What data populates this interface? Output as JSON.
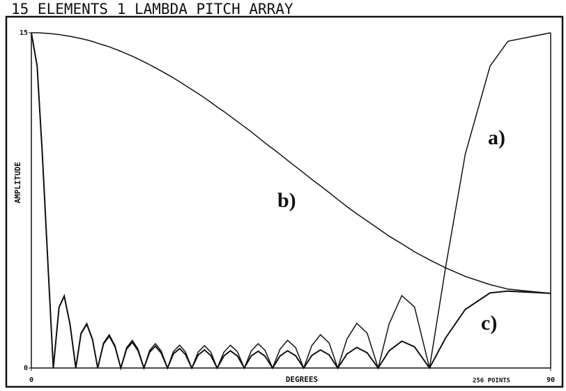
{
  "chart_data": {
    "type": "line",
    "title": "15 ELEMENTS 1 LAMBDA PITCH ARRAY",
    "xlabel": "DEGREES",
    "ylabel": "AMPLITUDE",
    "note": "256 POINTS",
    "xlim": [
      0,
      90
    ],
    "ylim": [
      0,
      15
    ],
    "xticks": [
      0,
      90
    ],
    "yticks": [
      0,
      15
    ],
    "x": [
      0,
      1.0,
      1.9,
      2.9,
      3.8,
      4.8,
      5.7,
      6.7,
      7.7,
      8.6,
      9.6,
      10.6,
      11.5,
      12.5,
      13.5,
      14.5,
      15.5,
      16.5,
      17.5,
      18.5,
      19.5,
      20.5,
      21.5,
      22.5,
      23.6,
      24.6,
      25.7,
      26.7,
      27.8,
      28.9,
      30,
      31.1,
      32.2,
      33.4,
      34.5,
      35.7,
      36.9,
      38.1,
      39.3,
      40.5,
      41.8,
      43.1,
      44.4,
      45.8,
      47.2,
      48.6,
      50.1,
      51.6,
      53.1,
      54.7,
      56.4,
      58.2,
      60.1,
      62.0,
      64.2,
      66.4,
      69.0,
      71.8,
      75.2,
      79.5,
      82.6,
      90
    ],
    "series": [
      {
        "name": "a)",
        "color": "#111111",
        "values": [
          15,
          13.51,
          9.57,
          4.52,
          0,
          2.73,
          3.24,
          1.97,
          0,
          1.56,
          2.0,
          1.3,
          0,
          1.12,
          1.49,
          1.0,
          0,
          0.91,
          1.24,
          0.84,
          0,
          0.79,
          1.09,
          0.76,
          0,
          0.73,
          1.02,
          0.72,
          0,
          0.71,
          1.0,
          0.71,
          0,
          0.72,
          1.02,
          0.73,
          0,
          0.76,
          1.09,
          0.79,
          0,
          0.84,
          1.24,
          0.91,
          0,
          1.0,
          1.49,
          1.12,
          0,
          1.3,
          2.0,
          1.56,
          0,
          1.97,
          3.24,
          2.73,
          0,
          4.52,
          9.57,
          13.51,
          14.62,
          15
        ]
      },
      {
        "name": "b)",
        "color": "#111111",
        "values": [
          15,
          15.0,
          14.99,
          14.97,
          14.95,
          14.92,
          14.88,
          14.84,
          14.79,
          14.74,
          14.68,
          14.61,
          14.53,
          14.45,
          14.37,
          14.27,
          14.17,
          14.06,
          13.95,
          13.83,
          13.7,
          13.57,
          13.43,
          13.29,
          13.13,
          12.98,
          12.81,
          12.64,
          12.46,
          12.28,
          12.09,
          11.89,
          11.68,
          11.47,
          11.26,
          11.03,
          10.8,
          10.57,
          10.32,
          10.07,
          9.82,
          9.56,
          9.29,
          9.01,
          8.73,
          8.44,
          8.15,
          7.85,
          7.54,
          7.22,
          6.9,
          6.58,
          6.24,
          5.9,
          5.56,
          5.2,
          4.84,
          4.48,
          4.1,
          3.73,
          3.53,
          3.34
        ]
      },
      {
        "name": "c)",
        "color": "#111111",
        "values": [
          15,
          13.51,
          9.56,
          4.51,
          0,
          2.72,
          3.21,
          1.95,
          0,
          1.53,
          1.96,
          1.27,
          0,
          1.08,
          1.43,
          0.95,
          0,
          0.85,
          1.15,
          0.77,
          0,
          0.71,
          0.98,
          0.67,
          0,
          0.63,
          0.87,
          0.61,
          0,
          0.58,
          0.81,
          0.56,
          0,
          0.55,
          0.77,
          0.54,
          0,
          0.54,
          0.75,
          0.53,
          0,
          0.54,
          0.77,
          0.55,
          0,
          0.56,
          0.81,
          0.59,
          0,
          0.63,
          0.92,
          0.68,
          0,
          0.77,
          1.2,
          0.95,
          0,
          1.35,
          2.62,
          3.36,
          3.44,
          3.34
        ]
      }
    ]
  }
}
